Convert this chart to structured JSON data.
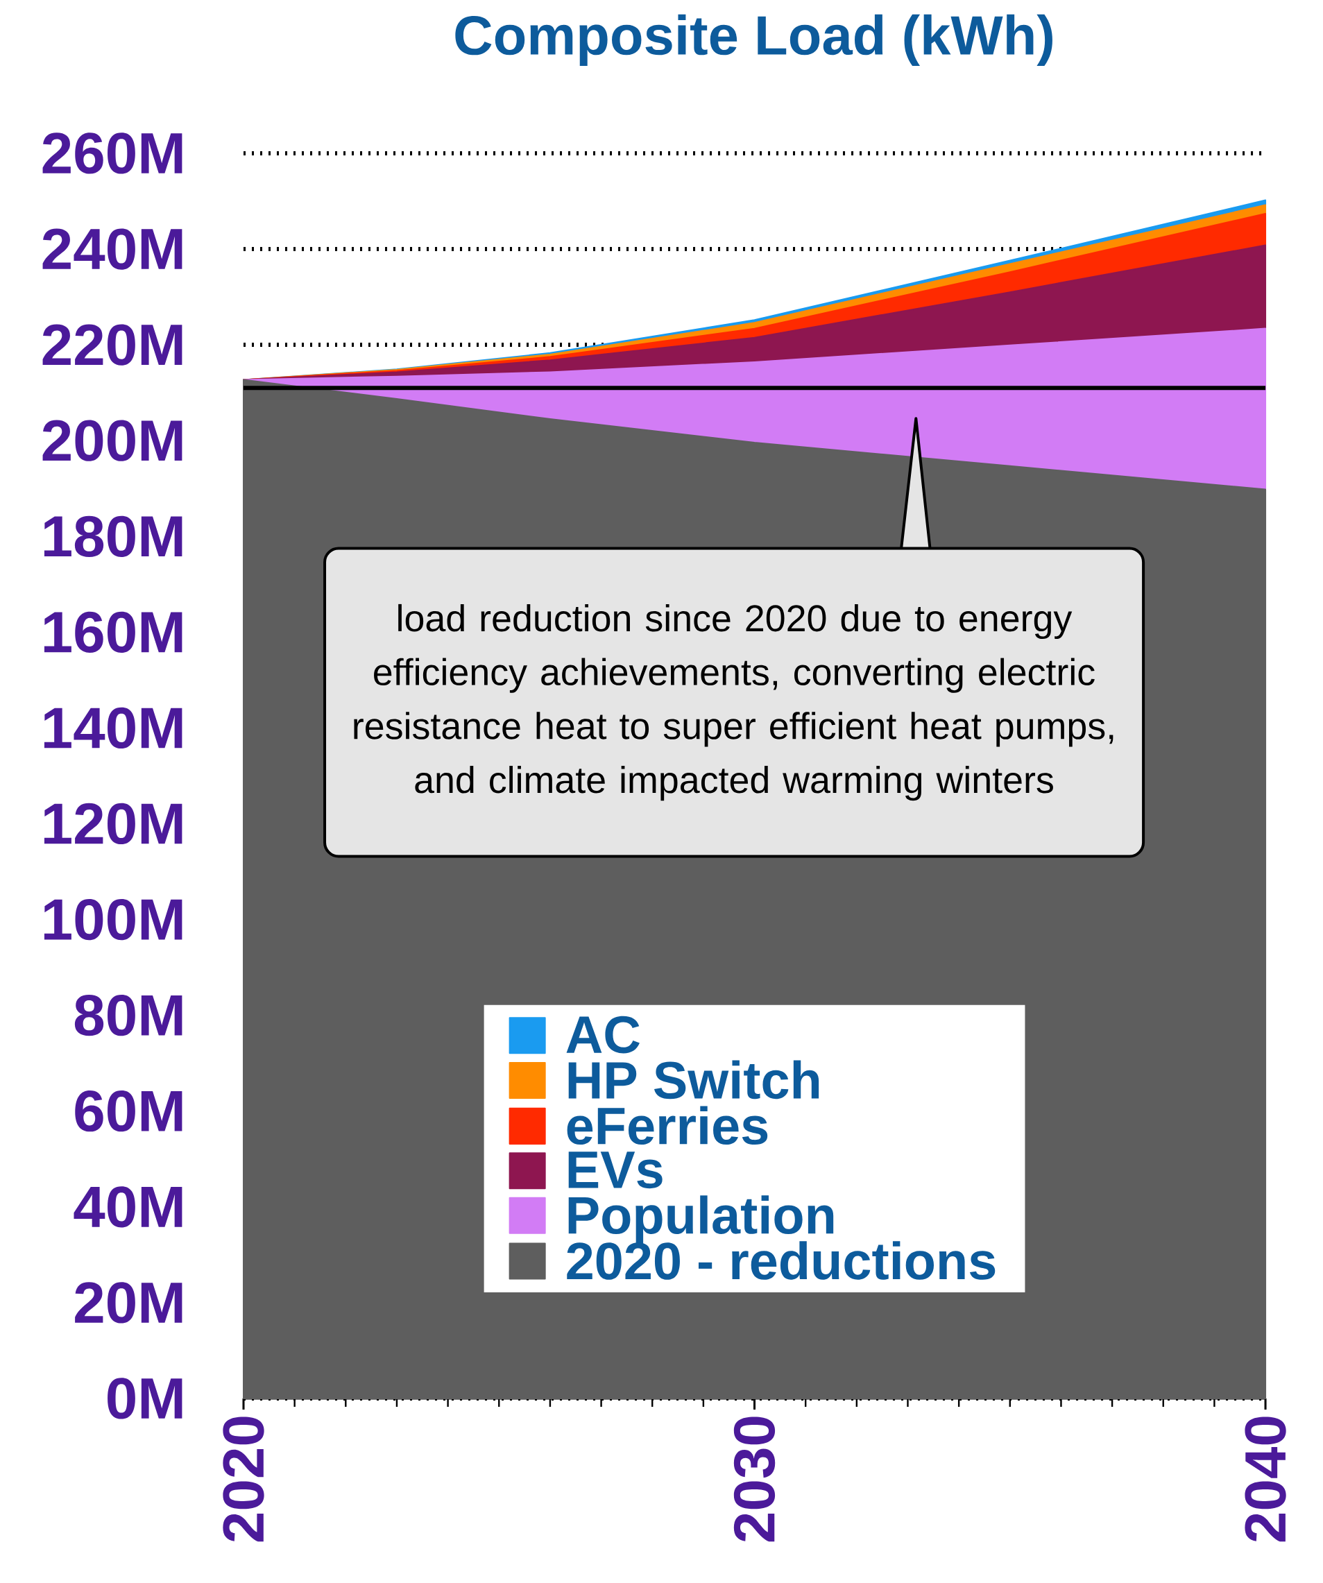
{
  "chart_data": {
    "type": "area",
    "stacked": true,
    "title": "Composite Load (kWh)",
    "x": [
      2020,
      2023,
      2026,
      2030,
      2035,
      2040
    ],
    "series": [
      {
        "name": "2020 - reductions",
        "color": "#5e5e5e",
        "values": [
          212.7,
          208.7,
          204.5,
          199.6,
          194.7,
          189.8
        ]
      },
      {
        "name": "Population",
        "color": "#d27cf5",
        "values": [
          0,
          4.7,
          9.8,
          16.8,
          25.2,
          33.6
        ]
      },
      {
        "name": "EVs",
        "color": "#8e1650",
        "values": [
          0,
          0.9,
          2.5,
          5.1,
          11.1,
          17.4
        ]
      },
      {
        "name": "eFerries",
        "color": "#ff2a00",
        "values": [
          0,
          0.3,
          0.7,
          1.9,
          4.2,
          6.6
        ]
      },
      {
        "name": "HP Switch",
        "color": "#ff8c00",
        "values": [
          0,
          0.2,
          0.5,
          1.2,
          1.7,
          1.8
        ]
      },
      {
        "name": "AC",
        "color": "#1a9bf0",
        "values": [
          0,
          0.1,
          0.3,
          0.6,
          0.7,
          1.0
        ]
      }
    ],
    "xlim": [
      2020,
      2040
    ],
    "xticks": [
      2020,
      2030,
      2040
    ],
    "ylim": [
      0,
      260
    ],
    "yticks": [
      {
        "value": 0,
        "label": "0M"
      },
      {
        "value": 20,
        "label": "20M"
      },
      {
        "value": 40,
        "label": "40M"
      },
      {
        "value": 60,
        "label": "60M"
      },
      {
        "value": 80,
        "label": "80M"
      },
      {
        "value": 100,
        "label": "100M"
      },
      {
        "value": 120,
        "label": "120M"
      },
      {
        "value": 140,
        "label": "140M"
      },
      {
        "value": 160,
        "label": "160M"
      },
      {
        "value": 180,
        "label": "180M"
      },
      {
        "value": 200,
        "label": "200M"
      },
      {
        "value": 220,
        "label": "220M"
      },
      {
        "value": 240,
        "label": "240M"
      },
      {
        "value": 260,
        "label": "260M"
      }
    ],
    "grid": "y",
    "legend": "bottom",
    "ref_lines": [
      {
        "axis": "y",
        "value": 211,
        "color": "#000000"
      }
    ],
    "annotations": [
      "load reduction since 2020 due to energy efficiency achievements, converting electric resistance heat to super efficient heat pumps, and climate impacted warming winters"
    ]
  }
}
